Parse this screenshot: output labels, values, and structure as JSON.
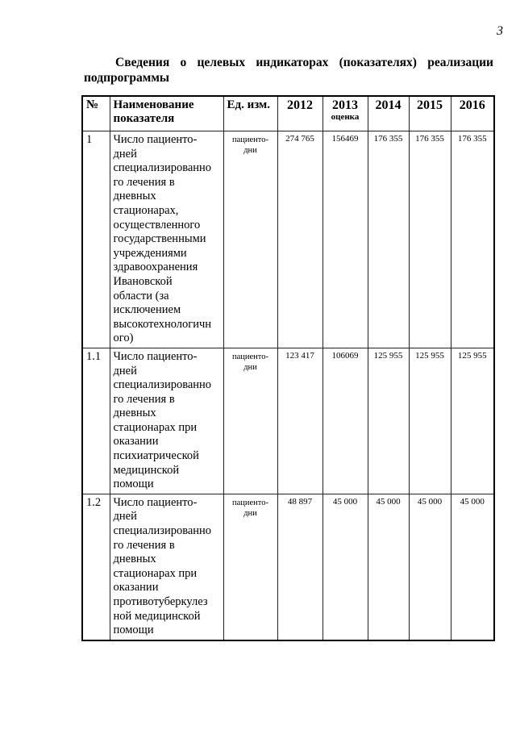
{
  "page_number": "3",
  "title": "Сведения о целевых индикаторах (показателях) реализации подпрограммы",
  "table": {
    "headers": {
      "num": "№",
      "name": "Наименование показателя",
      "unit": "Ед. изм.",
      "y2012": "2012",
      "y2013": "2013",
      "y2013_note": "оценка",
      "y2014": "2014",
      "y2015": "2015",
      "y2016": "2016"
    },
    "rows": [
      {
        "num": "1",
        "name": "Число пациенто-\nдней\nспециализированно\nго лечения в\nдневных\nстационарах,\nосуществленного\nгосударственными\nучреждениями\nздравоохранения\nИвановской\nобласти (за\nисключением\nвысокотехнологичн\nого)",
        "unit": "пациенто-дни",
        "v2012": "274 765",
        "v2013": "156469",
        "v2014": "176 355",
        "v2015": "176 355",
        "v2016": "176 355"
      },
      {
        "num": "1.1",
        "name": "Число пациенто-\nдней\nспециализированно\nго лечения в\nдневных\nстационарах при\nоказании\nпсихиатрической\nмедицинской\nпомощи",
        "unit": "пациенто-дни",
        "v2012": "123 417",
        "v2013": "106069",
        "v2014": "125 955",
        "v2015": "125 955",
        "v2016": "125 955"
      },
      {
        "num": "1.2",
        "name": "Число пациенто-\nдней\nспециализированно\nго лечения в\nдневных\nстационарах при\nоказании\nпротивотуберкулез\nной медицинской\nпомощи",
        "unit": "пациенто-дни",
        "v2012": "48 897",
        "v2013": "45 000",
        "v2014": "45 000",
        "v2015": "45 000",
        "v2016": "45 000"
      }
    ]
  }
}
